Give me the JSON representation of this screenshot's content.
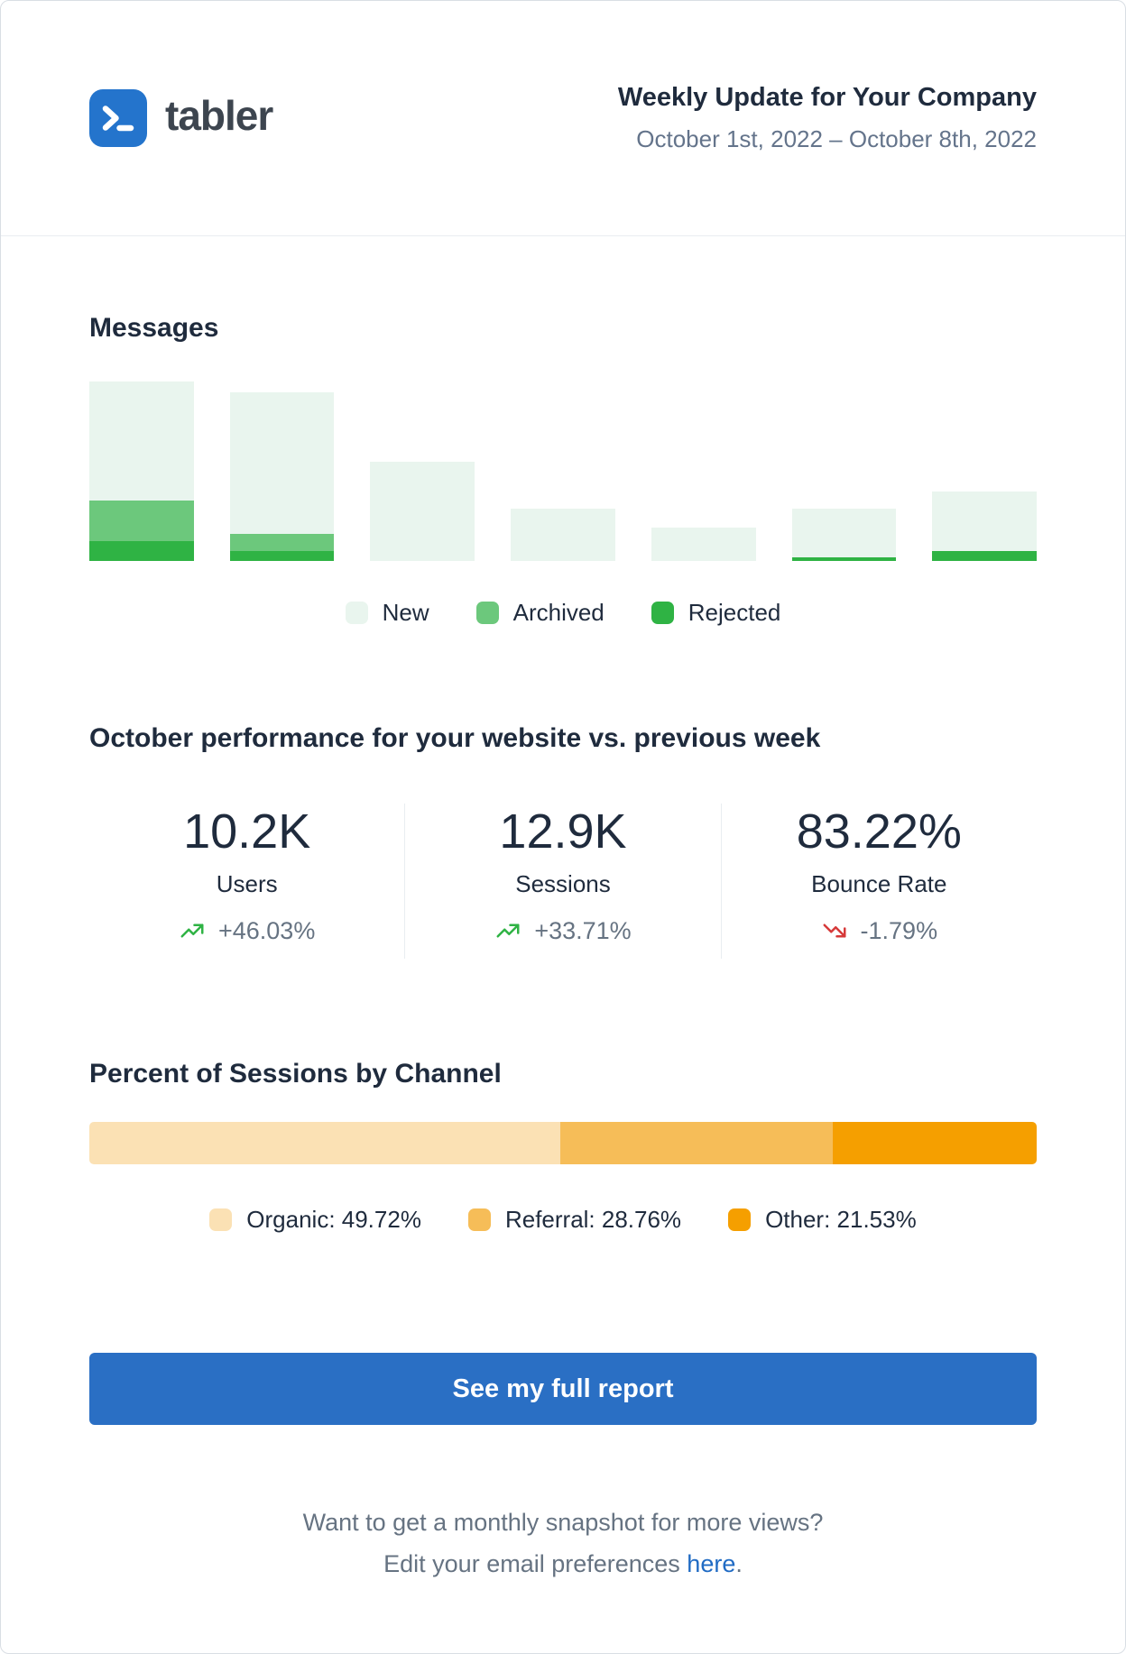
{
  "header": {
    "brand": "tabler",
    "title": "Weekly Update for Your Company",
    "date_range": "October 1st, 2022 – October 8th, 2022"
  },
  "messages": {
    "title": "Messages"
  },
  "chart_data": [
    {
      "type": "bar",
      "stacked": true,
      "title": "Messages",
      "x": [
        "1",
        "2",
        "3",
        "4",
        "5",
        "6",
        "7"
      ],
      "x_axis_labels_visible": false,
      "y_axis_visible": false,
      "grid": false,
      "legend_position": "bottom-center",
      "ylim": [
        0,
        200
      ],
      "series": [
        {
          "name": "New",
          "color": "#e9f5ee",
          "values": [
            132,
            157,
            110,
            58,
            37,
            54,
            66
          ]
        },
        {
          "name": "Archived",
          "color": "#6cc87c",
          "values": [
            45,
            19,
            0,
            0,
            0,
            0,
            0
          ]
        },
        {
          "name": "Rejected",
          "color": "#2fb344",
          "values": [
            22,
            11,
            0,
            0,
            0,
            4,
            11
          ]
        }
      ]
    },
    {
      "type": "stacked-bar-100",
      "title": "Percent of Sessions by Channel",
      "legend_position": "bottom-center",
      "segments": [
        {
          "label": "Organic",
          "value": 49.72,
          "display": "Organic: 49.72%",
          "color": "#fbe1b4"
        },
        {
          "label": "Referral",
          "value": 28.76,
          "display": "Referral: 28.76%",
          "color": "#f6bd58"
        },
        {
          "label": "Other",
          "value": 21.53,
          "display": "Other: 21.53%",
          "color": "#f59f00"
        }
      ]
    }
  ],
  "performance": {
    "title": "October performance for your website vs. previous week",
    "stats": [
      {
        "value": "10.2K",
        "label": "Users",
        "delta": "+46.03%",
        "trend": "up"
      },
      {
        "value": "12.9K",
        "label": "Sessions",
        "delta": "+33.71%",
        "trend": "up"
      },
      {
        "value": "83.22%",
        "label": "Bounce Rate",
        "delta": "-1.79%",
        "trend": "down"
      }
    ]
  },
  "channels": {
    "title": "Percent of Sessions by Channel"
  },
  "cta": {
    "label": "See my full report"
  },
  "footer": {
    "line1": "Want to get a monthly snapshot for more views?",
    "line2_prefix": "Edit your email preferences ",
    "link_text": "here",
    "line2_suffix": "."
  },
  "colors": {
    "brand_blue": "#2474cc",
    "button_blue": "#2a6fc4",
    "link_blue": "#206bc4",
    "trend_up_green": "#2fb344",
    "trend_down_red": "#d63939",
    "text_navy": "#1f2b3d",
    "text_gray": "#667382",
    "divider": "#e9edf1"
  }
}
